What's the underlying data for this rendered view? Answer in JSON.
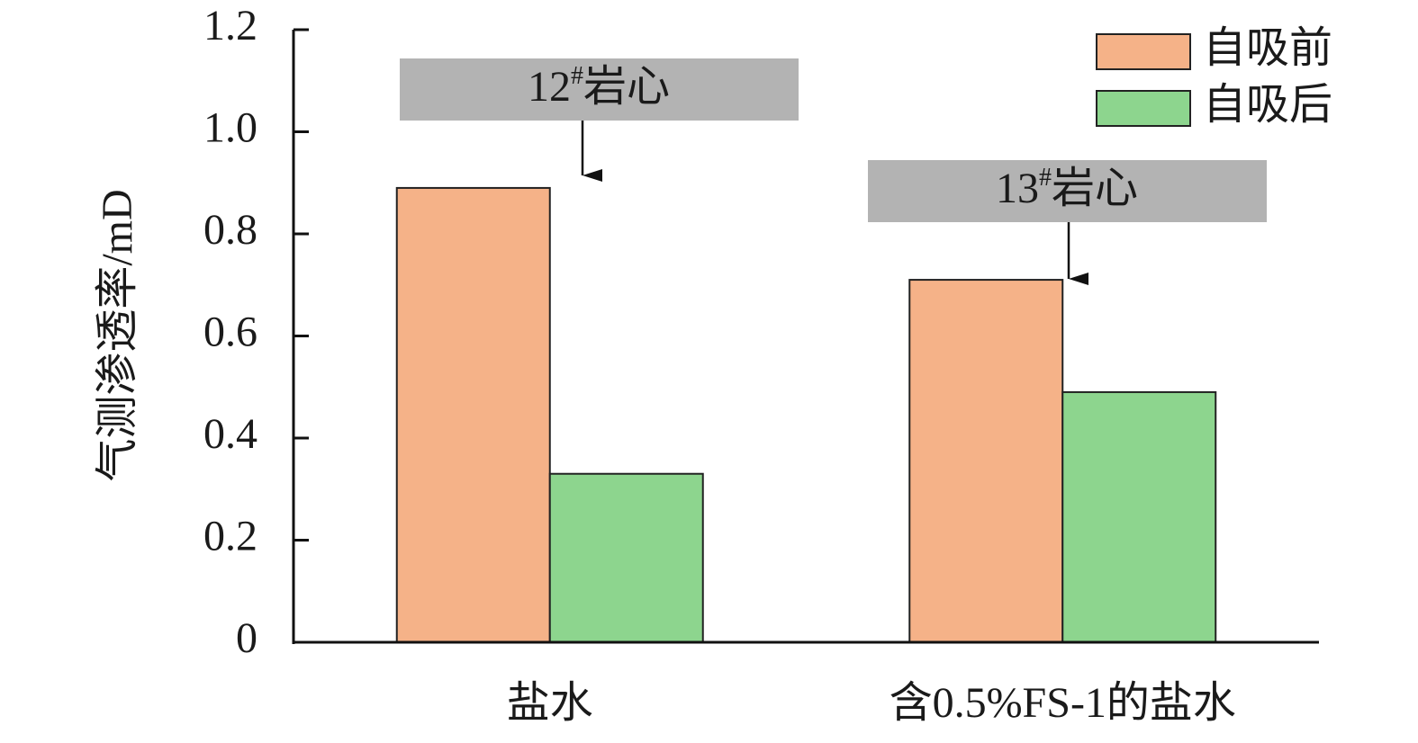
{
  "chart_data": {
    "type": "bar",
    "y_label": "气测渗透率/mD",
    "categories": [
      "盐水",
      "含0.5%FS-1的盐水"
    ],
    "series": [
      {
        "name": "自吸前",
        "color": "#f5b288",
        "values": [
          0.89,
          0.71
        ]
      },
      {
        "name": "自吸后",
        "color": "#8dd58e",
        "values": [
          0.33,
          0.49
        ]
      }
    ],
    "ylim": [
      0,
      1.2
    ],
    "yticks": [
      0,
      0.2,
      0.4,
      0.6,
      0.8,
      {
        "value": 1,
        "label": "1.0"
      },
      1.2
    ],
    "legend": "upper right",
    "annotations": [
      {
        "text": "12",
        "sup": "#",
        "suffix": "岩心"
      },
      {
        "text": "13",
        "sup": "#",
        "suffix": "岩心"
      }
    ]
  }
}
